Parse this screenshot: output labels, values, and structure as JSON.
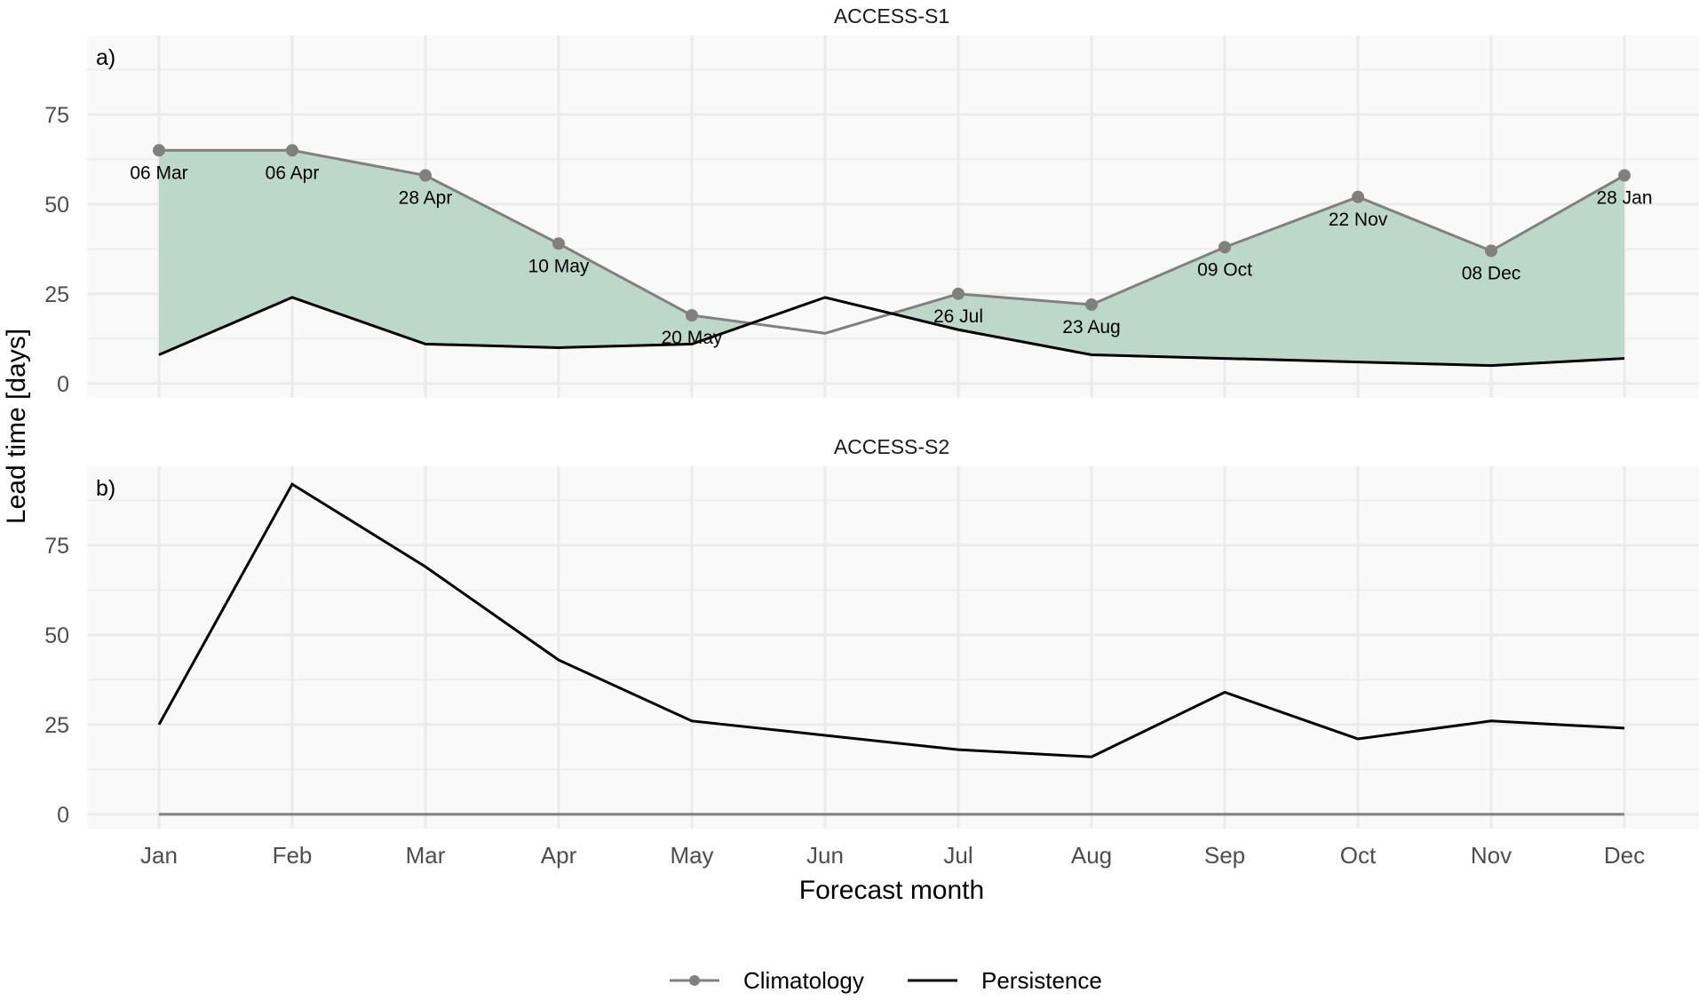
{
  "chart_data": {
    "type": "line",
    "xlabel": "Forecast month",
    "ylabel": "Lead time [days]",
    "categories": [
      "Jan",
      "Feb",
      "Mar",
      "Apr",
      "May",
      "Jun",
      "Jul",
      "Aug",
      "Sep",
      "Oct",
      "Nov",
      "Dec"
    ],
    "ylim": [
      -4,
      97
    ],
    "yticks": [
      0,
      25,
      50,
      75
    ],
    "grid": true,
    "legend": {
      "position": "bottom",
      "entries": [
        "Climatology",
        "Persistence"
      ]
    },
    "colors": {
      "climatology": "#808080",
      "persistence": "#000000",
      "fill": "#bcd8c9",
      "panel_bg": "#f9f9f9",
      "grid": "#ebebeb"
    },
    "panels": [
      {
        "title": "ACCESS-S1",
        "tag": "a)",
        "series": [
          {
            "name": "Climatology",
            "values": [
              65,
              65,
              58,
              39,
              19,
              14,
              25,
              22,
              38,
              52,
              37,
              58
            ],
            "points": [
              true,
              true,
              true,
              true,
              true,
              false,
              true,
              true,
              true,
              true,
              true,
              true
            ]
          },
          {
            "name": "Persistence",
            "values": [
              8,
              24,
              11,
              10,
              11,
              24,
              15,
              8,
              7,
              6,
              5,
              7
            ]
          }
        ],
        "annotations": [
          "06 Mar",
          "06 Apr",
          "28 Apr",
          "10 May",
          "20 May",
          "",
          "26 Jul",
          "23 Aug",
          "09 Oct",
          "22 Nov",
          "08 Dec",
          "28 Jan"
        ],
        "ribbon": true
      },
      {
        "title": "ACCESS-S2",
        "tag": "b)",
        "series": [
          {
            "name": "Climatology",
            "values": [
              0,
              0,
              0,
              0,
              0,
              0,
              0,
              0,
              0,
              0,
              0,
              0
            ],
            "points": [
              false,
              false,
              false,
              false,
              false,
              false,
              false,
              false,
              false,
              false,
              false,
              false
            ]
          },
          {
            "name": "Persistence",
            "values": [
              25,
              92,
              69,
              43,
              26,
              22,
              18,
              16,
              34,
              21,
              26,
              24
            ]
          }
        ],
        "annotations": [],
        "ribbon": false
      }
    ]
  }
}
